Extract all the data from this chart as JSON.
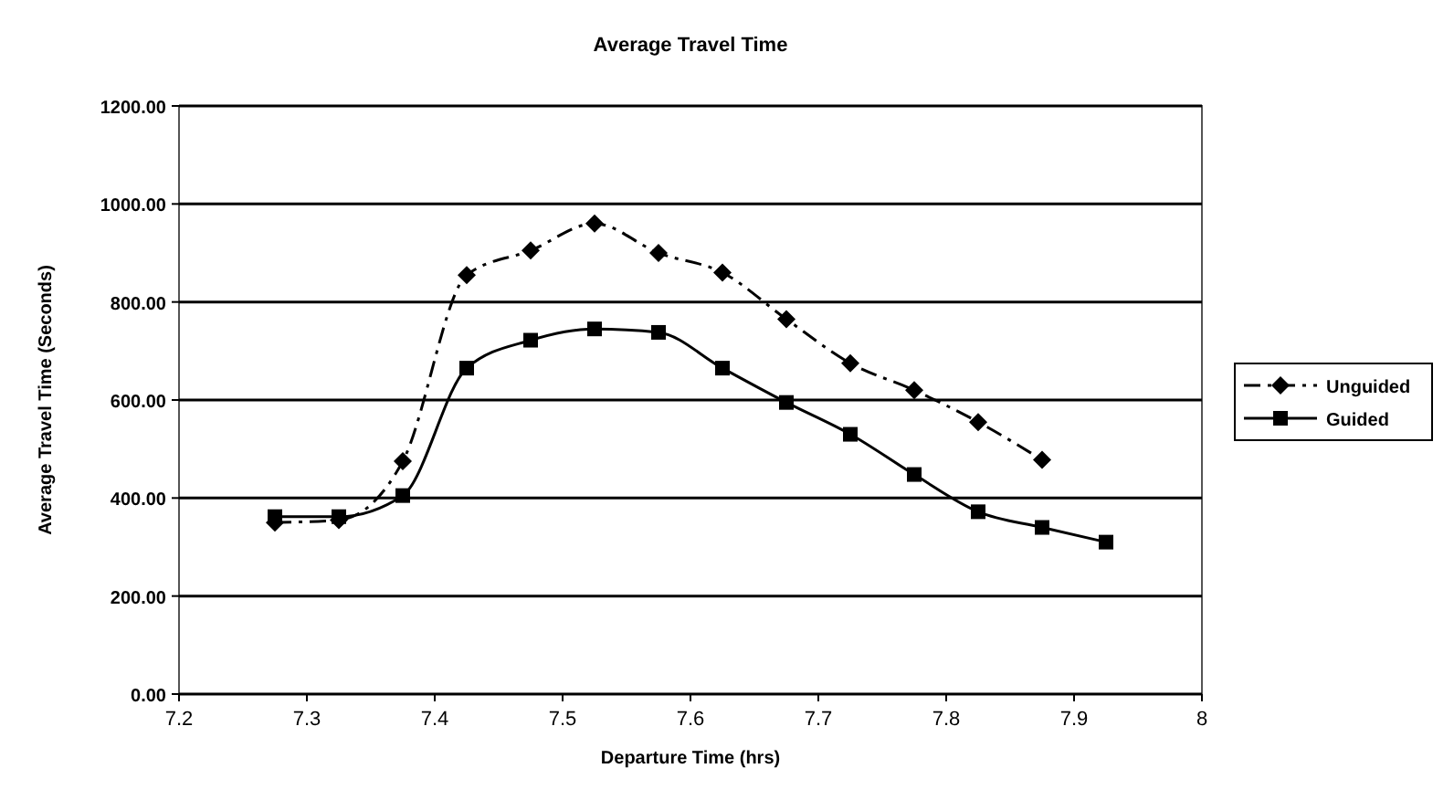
{
  "chart_data": {
    "type": "line",
    "title": "Average Travel Time",
    "xlabel": "Departure Time (hrs)",
    "ylabel": "Average Travel Time (Seconds)",
    "xlim": [
      7.2,
      8
    ],
    "xticks": [
      7.2,
      7.3,
      7.4,
      7.5,
      7.6,
      7.7,
      7.8,
      7.9,
      8
    ],
    "ylim": [
      0,
      1200
    ],
    "yticks": [
      {
        "value": 0,
        "label": "0.00"
      },
      {
        "value": 200,
        "label": "200.00"
      },
      {
        "value": 400,
        "label": "400.00"
      },
      {
        "value": 600,
        "label": "600.00"
      },
      {
        "value": 800,
        "label": "800.00"
      },
      {
        "value": 1000,
        "label": "1000.00"
      },
      {
        "value": 1200,
        "label": "1200.00"
      }
    ],
    "grid": "y",
    "legend": "right",
    "series": [
      {
        "name": "Unguided",
        "color": "#000000",
        "marker": "diamond",
        "line_style": "dashed",
        "x": [
          7.275,
          7.325,
          7.375,
          7.425,
          7.475,
          7.525,
          7.575,
          7.625,
          7.675,
          7.725,
          7.775,
          7.825,
          7.875
        ],
        "values": [
          350,
          355,
          475,
          855,
          905,
          960,
          900,
          860,
          765,
          675,
          620,
          555,
          478
        ]
      },
      {
        "name": "Guided",
        "color": "#000000",
        "marker": "square",
        "line_style": "solid",
        "x": [
          7.275,
          7.325,
          7.375,
          7.425,
          7.475,
          7.525,
          7.575,
          7.625,
          7.675,
          7.725,
          7.775,
          7.825,
          7.875,
          7.925
        ],
        "values": [
          362,
          362,
          405,
          665,
          722,
          745,
          738,
          665,
          595,
          530,
          448,
          372,
          340,
          310
        ]
      }
    ]
  }
}
